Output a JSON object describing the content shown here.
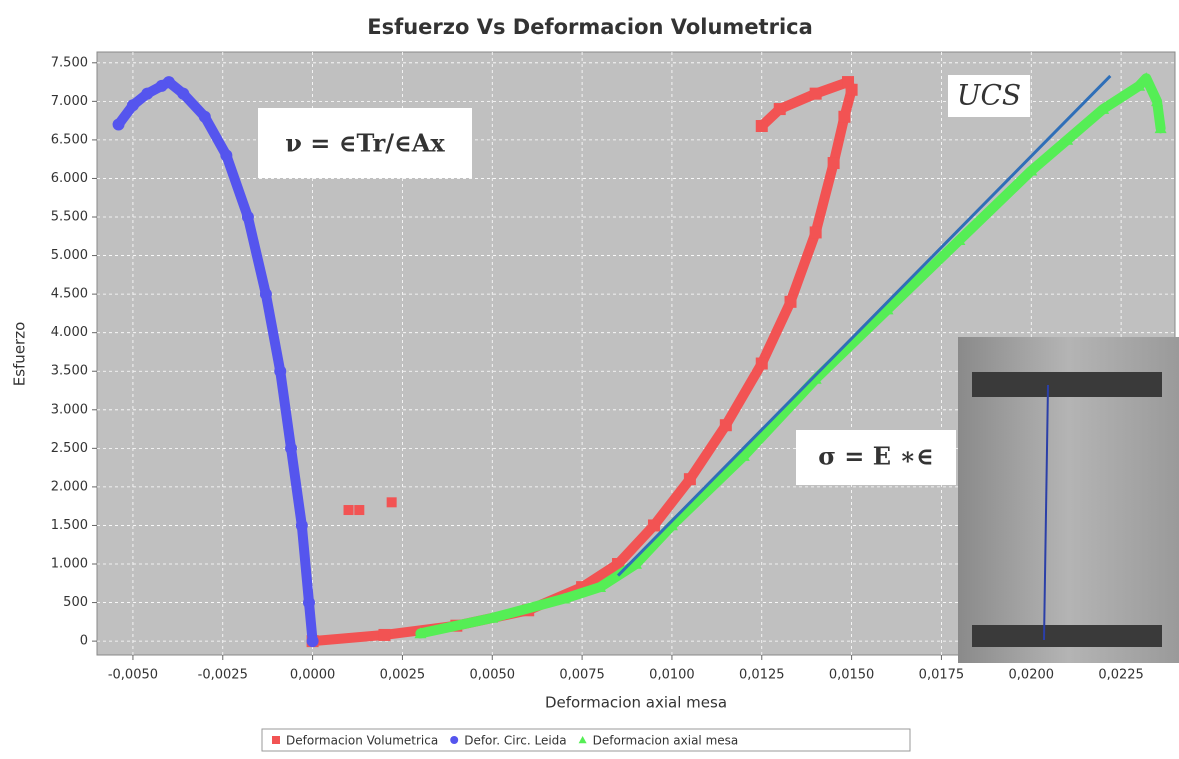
{
  "chart_data": {
    "type": "scatter",
    "title": "Esfuerzo Vs Deformacion Volumetrica",
    "x_label": "Deformacion axial mesa",
    "y_label": "Esfuerzo",
    "xlim": [
      -0.006,
      0.024
    ],
    "ylim": [
      -180,
      7640
    ],
    "xticks": [
      {
        "value": -0.005,
        "label": "-0,0050"
      },
      {
        "value": -0.0025,
        "label": "-0,0025"
      },
      {
        "value": 0,
        "label": "0,0000"
      },
      {
        "value": 0.0025,
        "label": "0,0025"
      },
      {
        "value": 0.005,
        "label": "0,0050"
      },
      {
        "value": 0.0075,
        "label": "0,0075"
      },
      {
        "value": 0.01,
        "label": "0,0100"
      },
      {
        "value": 0.0125,
        "label": "0,0125"
      },
      {
        "value": 0.015,
        "label": "0,0150"
      },
      {
        "value": 0.0175,
        "label": "0,0175"
      },
      {
        "value": 0.02,
        "label": "0,0200"
      },
      {
        "value": 0.0225,
        "label": "0,0225"
      }
    ],
    "yticks": [
      0,
      {
        "value": 500,
        "label": "500"
      },
      {
        "value": 1000,
        "label": "1.000"
      },
      {
        "value": 1500,
        "label": "1.500"
      },
      {
        "value": 2000,
        "label": "2.000"
      },
      {
        "value": 2500,
        "label": "2.500"
      },
      {
        "value": 3000,
        "label": "3.000"
      },
      {
        "value": 3500,
        "label": "3.500"
      },
      {
        "value": 4000,
        "label": "4.000"
      },
      {
        "value": 4500,
        "label": "4.500"
      },
      {
        "value": 5000,
        "label": "5.000"
      },
      {
        "value": 5500,
        "label": "5.500"
      },
      {
        "value": 6000,
        "label": "6.000"
      },
      {
        "value": 6500,
        "label": "6.500"
      },
      {
        "value": 7000,
        "label": "7.000"
      },
      {
        "value": 7500,
        "label": "7.500"
      }
    ],
    "grid": true,
    "legend": "bottom",
    "series": [
      {
        "name": "Deformacion Volumetrica",
        "color": "#f25353",
        "marker": "square",
        "x": [
          0,
          0.002,
          0.004,
          0.006,
          0.0075,
          0.0085,
          0.0095,
          0.0105,
          0.0115,
          0.0125,
          0.0133,
          0.014,
          0.0145,
          0.0148,
          0.015,
          0.0149,
          0.014,
          0.013,
          0.0125
        ],
        "values": [
          0,
          80,
          200,
          400,
          700,
          1000,
          1500,
          2100,
          2800,
          3600,
          4400,
          5300,
          6200,
          6800,
          7150,
          7250,
          7100,
          6900,
          6680
        ]
      },
      {
        "name": "Defor. Circ. Leida",
        "color": "#5555ee",
        "marker": "circle",
        "x": [
          0,
          -0.0001,
          -0.0003,
          -0.0006,
          -0.0009,
          -0.0013,
          -0.0018,
          -0.0024,
          -0.003,
          -0.0036,
          -0.004,
          -0.0042,
          -0.0046,
          -0.005,
          -0.0054
        ],
        "values": [
          0,
          500,
          1500,
          2500,
          3500,
          4500,
          5500,
          6300,
          6800,
          7100,
          7250,
          7200,
          7100,
          6950,
          6700
        ]
      },
      {
        "name": "Deformacion axial mesa",
        "color": "#55ee55",
        "marker": "triangle",
        "x": [
          0.003,
          0.005,
          0.007,
          0.008,
          0.009,
          0.01,
          0.012,
          0.014,
          0.016,
          0.018,
          0.02,
          0.021,
          0.022,
          0.023,
          0.0232,
          0.0235,
          0.0236
        ],
        "values": [
          100,
          300,
          550,
          700,
          1000,
          1500,
          2400,
          3400,
          4300,
          5200,
          6100,
          6500,
          6900,
          7200,
          7300,
          7000,
          6650
        ]
      }
    ],
    "outliers": {
      "color": "#f25353",
      "x": [
        0.001,
        0.0013,
        0.0022
      ],
      "values": [
        1700,
        1700,
        1800
      ]
    },
    "trend_line": {
      "color": "#2f6fb8",
      "x": [
        0.0085,
        0.0222
      ],
      "values": [
        850,
        7330
      ]
    },
    "annotations": [
      "ν = ∈Tr/∈Ax",
      "UCS",
      "σ = E ∗∈"
    ]
  }
}
